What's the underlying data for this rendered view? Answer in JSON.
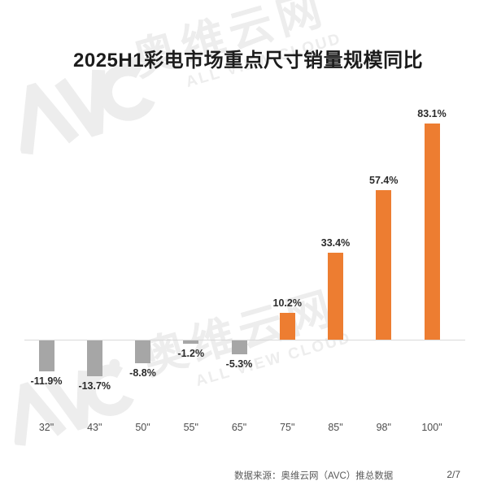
{
  "title": "2025H1彩电市场重点尺寸销量规模同比",
  "watermark": {
    "logo": "AVC",
    "brand": "奥维云网",
    "brand_en": "ALL VIEW CLOUD"
  },
  "colors": {
    "positive_bar": "#ED7D31",
    "negative_bar": "#A6A6A6",
    "axis_line": "#D9D9D9",
    "title_text": "#1C1C1C",
    "watermark": "#EDEDED"
  },
  "chart_data": {
    "type": "bar",
    "title": "2025H1彩电市场重点尺寸销量规模同比",
    "categories": [
      "32\"",
      "43\"",
      "50\"",
      "55\"",
      "65\"",
      "75\"",
      "85\"",
      "98\"",
      "100\""
    ],
    "values": [
      -11.9,
      -13.7,
      -8.8,
      -1.2,
      -5.3,
      10.2,
      33.4,
      57.4,
      83.1
    ],
    "labels": [
      "-11.9%",
      "-13.7%",
      "-8.8%",
      "-1.2%",
      "-5.3%",
      "10.2%",
      "33.4%",
      "57.4%",
      "83.1%"
    ],
    "unit": "%",
    "xlabel": "",
    "ylabel": "",
    "ylim": [
      -20,
      90
    ],
    "grid": false,
    "legend": false,
    "baseline": 0
  },
  "footer": {
    "source": "数据来源：奥维云网（AVC）推总数据",
    "page": "2/7"
  }
}
